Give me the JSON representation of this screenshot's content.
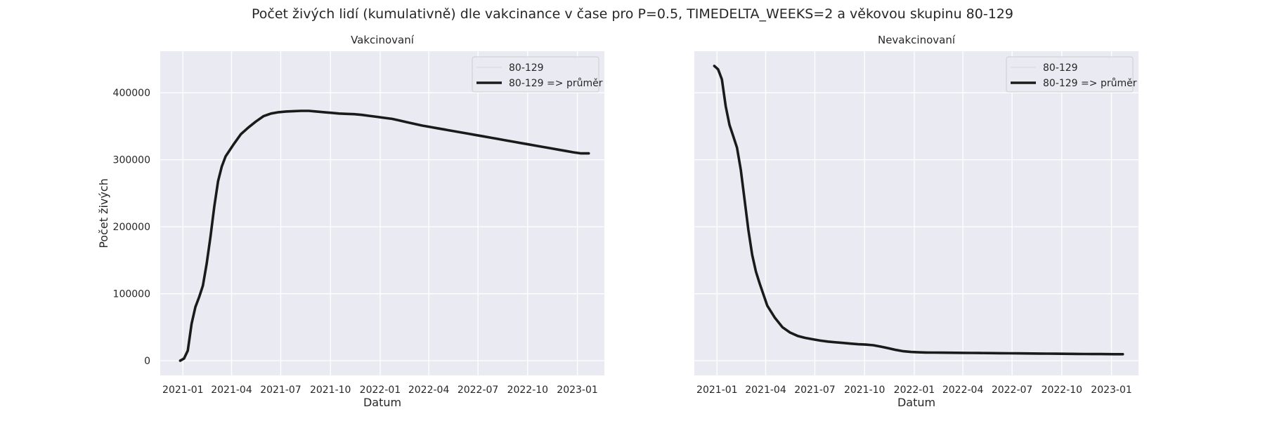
{
  "figure": {
    "suptitle": "Počet živých lidí (kumulativně) dle vakcinance v čase pro P=0.5, TIMEDELTA_WEEKS=2 a věkovou skupinu 80-129"
  },
  "chart_data": [
    {
      "type": "line",
      "title": "Vakcinovaní",
      "xlabel": "Datum",
      "ylabel": "Počet živých",
      "x_tick_labels": [
        "2021-01",
        "2021-04",
        "2021-07",
        "2021-10",
        "2022-01",
        "2022-04",
        "2022-07",
        "2022-10",
        "2023-01"
      ],
      "y_tick_labels": [
        "0",
        "100000",
        "200000",
        "300000",
        "400000"
      ],
      "y_ticks": [
        0,
        100000,
        200000,
        300000,
        400000
      ],
      "ylim": [
        -22000,
        462000
      ],
      "xlim": [
        "2020-11-20",
        "2023-02-20"
      ],
      "grid": true,
      "legend_position": "top-right",
      "series": [
        {
          "name": "80-129",
          "color": "#d8d8d8",
          "style": "thin",
          "x": [
            "2020-12-27",
            "2021-01-10",
            "2021-01-24",
            "2021-02-07",
            "2021-02-21",
            "2021-03-07"
          ],
          "y": [
            0,
            15000,
            80000,
            110000,
            180000,
            265000
          ]
        },
        {
          "name": "80-129 => průměr",
          "color": "#1a1a1a",
          "style": "thick",
          "x": [
            "2020-12-27",
            "2021-01-03",
            "2021-01-10",
            "2021-01-17",
            "2021-01-24",
            "2021-01-31",
            "2021-02-07",
            "2021-02-14",
            "2021-02-21",
            "2021-02-28",
            "2021-03-07",
            "2021-03-14",
            "2021-03-21",
            "2021-04-04",
            "2021-04-18",
            "2021-05-02",
            "2021-05-16",
            "2021-05-30",
            "2021-06-13",
            "2021-06-27",
            "2021-07-11",
            "2021-07-25",
            "2021-08-08",
            "2021-08-22",
            "2021-09-05",
            "2021-09-19",
            "2021-10-03",
            "2021-10-17",
            "2021-10-31",
            "2021-11-14",
            "2021-11-28",
            "2021-12-12",
            "2021-12-26",
            "2022-01-09",
            "2022-01-23",
            "2022-02-06",
            "2022-02-20",
            "2022-03-06",
            "2022-03-20",
            "2022-04-03",
            "2022-04-17",
            "2022-05-01",
            "2022-05-15",
            "2022-05-29",
            "2022-06-12",
            "2022-06-26",
            "2022-07-10",
            "2022-07-24",
            "2022-08-07",
            "2022-08-21",
            "2022-09-04",
            "2022-09-18",
            "2022-10-02",
            "2022-10-16",
            "2022-10-30",
            "2022-11-13",
            "2022-11-27",
            "2022-12-11",
            "2022-12-25",
            "2023-01-08",
            "2023-01-22"
          ],
          "y": [
            0,
            3000,
            15000,
            55000,
            80000,
            95000,
            112000,
            145000,
            185000,
            230000,
            268000,
            290000,
            305000,
            322000,
            338000,
            348000,
            357000,
            365000,
            369000,
            371000,
            372000,
            372500,
            373000,
            373000,
            372000,
            371000,
            370000,
            369000,
            368500,
            368000,
            367000,
            365500,
            364000,
            362500,
            361000,
            358500,
            356000,
            353500,
            351000,
            349000,
            347000,
            345000,
            343000,
            341000,
            339000,
            337000,
            335000,
            333000,
            331000,
            329000,
            327000,
            325000,
            323000,
            321000,
            319000,
            317000,
            315000,
            313000,
            311000,
            309500,
            309500
          ]
        }
      ]
    },
    {
      "type": "line",
      "title": "Nevakcinovaní",
      "xlabel": "Datum",
      "ylabel": "",
      "x_tick_labels": [
        "2021-01",
        "2021-04",
        "2021-07",
        "2021-10",
        "2022-01",
        "2022-04",
        "2022-07",
        "2022-10",
        "2023-01"
      ],
      "ylim": [
        -22000,
        462000
      ],
      "xlim": [
        "2020-11-20",
        "2023-02-20"
      ],
      "grid": true,
      "legend_position": "top-right",
      "series": [
        {
          "name": "80-129",
          "color": "#d8d8d8",
          "style": "thin",
          "x": [
            "2020-12-27",
            "2021-01-10",
            "2021-01-24",
            "2021-02-07"
          ],
          "y": [
            440000,
            420000,
            350000,
            318000
          ]
        },
        {
          "name": "80-129 => průměr",
          "color": "#1a1a1a",
          "style": "thick",
          "x": [
            "2020-12-27",
            "2021-01-03",
            "2021-01-10",
            "2021-01-17",
            "2021-01-24",
            "2021-01-31",
            "2021-02-07",
            "2021-02-14",
            "2021-02-21",
            "2021-02-28",
            "2021-03-07",
            "2021-03-14",
            "2021-03-21",
            "2021-04-04",
            "2021-04-18",
            "2021-05-02",
            "2021-05-16",
            "2021-05-30",
            "2021-06-13",
            "2021-06-27",
            "2021-07-11",
            "2021-07-25",
            "2021-08-08",
            "2021-08-22",
            "2021-09-05",
            "2021-09-19",
            "2021-10-03",
            "2021-10-17",
            "2021-10-31",
            "2021-11-14",
            "2021-11-28",
            "2021-12-12",
            "2021-12-26",
            "2022-01-09",
            "2022-01-23",
            "2022-02-06",
            "2022-02-20",
            "2022-03-06",
            "2022-03-20",
            "2022-04-03",
            "2022-04-17",
            "2022-05-01",
            "2022-05-15",
            "2022-05-29",
            "2022-06-12",
            "2022-06-26",
            "2022-07-10",
            "2022-07-24",
            "2022-08-07",
            "2022-08-21",
            "2022-09-04",
            "2022-09-18",
            "2022-10-02",
            "2022-10-16",
            "2022-10-30",
            "2022-11-13",
            "2022-11-27",
            "2022-12-11",
            "2022-12-25",
            "2023-01-08",
            "2023-01-22"
          ],
          "y": [
            440000,
            435000,
            420000,
            380000,
            352000,
            335000,
            318000,
            285000,
            240000,
            195000,
            158000,
            133000,
            115000,
            82000,
            64000,
            50000,
            42000,
            37000,
            34000,
            32000,
            30000,
            28500,
            27500,
            26500,
            25500,
            24500,
            24000,
            23000,
            21000,
            18500,
            16000,
            14000,
            13000,
            12500,
            12200,
            12000,
            11900,
            11800,
            11700,
            11600,
            11500,
            11400,
            11300,
            11200,
            11100,
            11000,
            10900,
            10800,
            10700,
            10600,
            10500,
            10400,
            10300,
            10200,
            10100,
            10000,
            9900,
            9800,
            9700,
            9600,
            9600
          ]
        }
      ]
    }
  ]
}
